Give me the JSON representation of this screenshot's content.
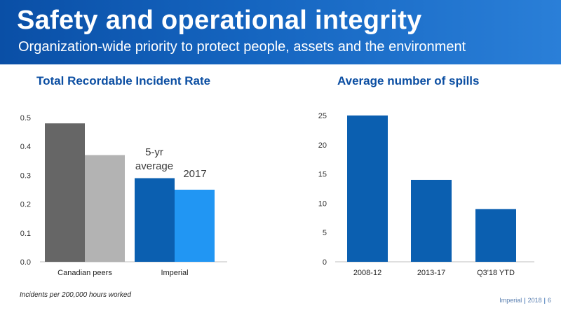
{
  "slide": {
    "title": "Safety and operational integrity",
    "subtitle": "Organization-wide priority to protect people, assets and the environment",
    "footnote": "Incidents per 200,000 hours worked",
    "footer": {
      "company": "Imperial",
      "year": "2018",
      "page": "6"
    }
  },
  "colors": {
    "header": "#1565c0",
    "peers_5yr": "#666666",
    "peers_2017": "#b3b3b3",
    "imperial_5yr": "#0b5fb0",
    "imperial_2017": "#2196f3",
    "spills": "#0b5fb0"
  },
  "chart_data": [
    {
      "type": "bar",
      "title": "Total Recordable Incident Rate",
      "categories": [
        "Canadian peers",
        "Imperial"
      ],
      "series": [
        {
          "name": "5-yr average",
          "values": [
            0.48,
            0.29
          ]
        },
        {
          "name": "2017",
          "values": [
            0.37,
            0.25
          ]
        }
      ],
      "ylim": [
        0,
        0.5
      ],
      "yticks": [
        "0.0",
        "0.1",
        "0.2",
        "0.3",
        "0.4",
        "0.5"
      ],
      "grid": false,
      "legend": "inline-labels"
    },
    {
      "type": "bar",
      "title": "Average number of spills",
      "categories": [
        "2008-12",
        "2013-17",
        "Q3'18 YTD"
      ],
      "values": [
        25,
        14,
        9
      ],
      "ylim": [
        0,
        25
      ],
      "yticks": [
        "0",
        "5",
        "10",
        "15",
        "20",
        "25"
      ],
      "grid": false
    }
  ]
}
